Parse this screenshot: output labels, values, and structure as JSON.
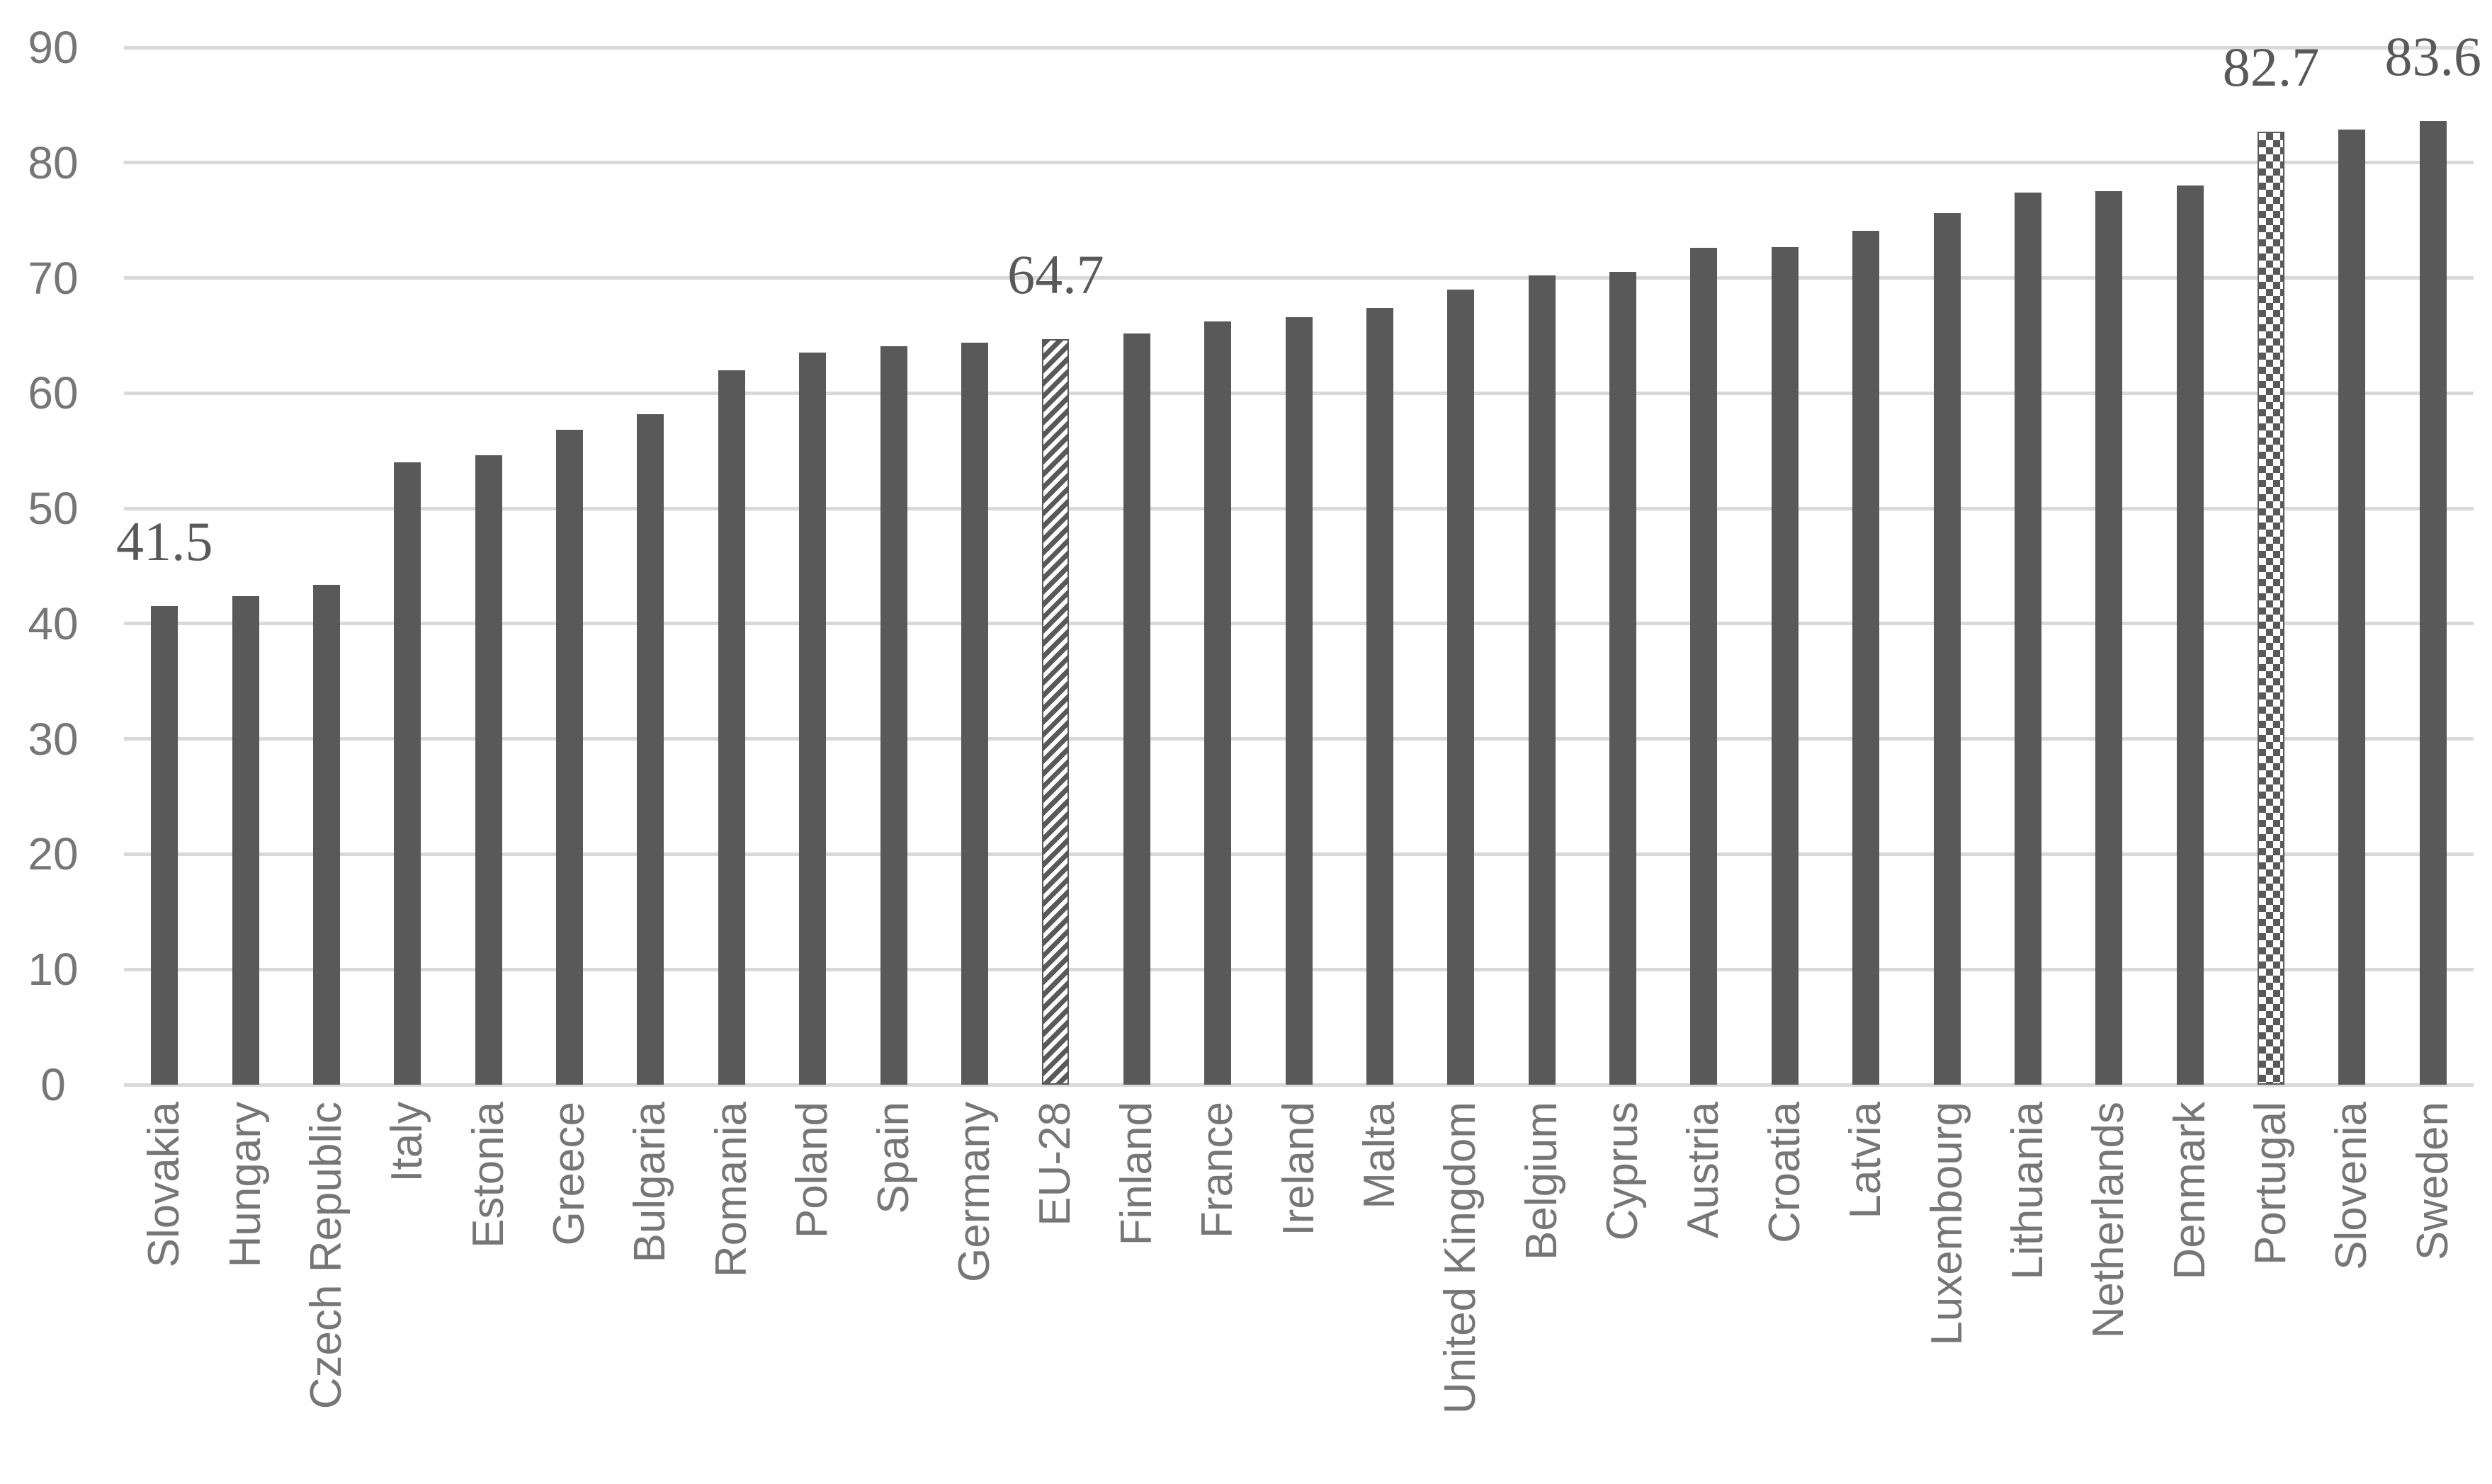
{
  "chart_data": {
    "type": "bar",
    "title": "",
    "xlabel": "",
    "ylabel": "",
    "categories": [
      "Slovakia",
      "Hungary",
      "Czech Republic",
      "Italy",
      "Estonia",
      "Greece",
      "Bulgaria",
      "Romania",
      "Poland",
      "Spain",
      "Germany",
      "EU-28",
      "Finland",
      "France",
      "Ireland",
      "Malta",
      "United Kingdom",
      "Belgium",
      "Cyprus",
      "Austria",
      "Croatia",
      "Latvia",
      "Luxembourg",
      "Lithuania",
      "Netherlands",
      "Denmark",
      "Portugal",
      "Slovenia",
      "Sweden"
    ],
    "values": [
      41.5,
      42.4,
      43.4,
      54.0,
      54.6,
      56.8,
      58.2,
      62.0,
      63.5,
      64.1,
      64.4,
      64.7,
      65.2,
      66.2,
      66.6,
      67.4,
      69.0,
      70.2,
      70.5,
      72.6,
      72.7,
      74.1,
      75.6,
      77.4,
      77.5,
      78.0,
      82.7,
      82.9,
      83.6
    ],
    "data_labels": [
      {
        "category": "Slovakia",
        "text": "41.5"
      },
      {
        "category": "EU-28",
        "text": "64.7"
      },
      {
        "category": "Portugal",
        "text": "82.7"
      },
      {
        "category": "Sweden",
        "text": "83.6"
      }
    ],
    "patterned_bars": [
      {
        "category": "EU-28",
        "pattern": "diagonal-stripes"
      },
      {
        "category": "Portugal",
        "pattern": "checkerboard"
      }
    ],
    "ylim": [
      0,
      90
    ],
    "yticks": [
      0,
      10,
      20,
      30,
      40,
      50,
      60,
      70,
      80,
      90
    ],
    "grid": "horizontal",
    "legend": "none",
    "bar_color": "#595959",
    "pattern_bg_color": "#ffffff",
    "gridline_color": "#D9D9D9",
    "axis_label_color": "#767676",
    "data_label_color": "#595959",
    "background_color": "#ffffff"
  }
}
